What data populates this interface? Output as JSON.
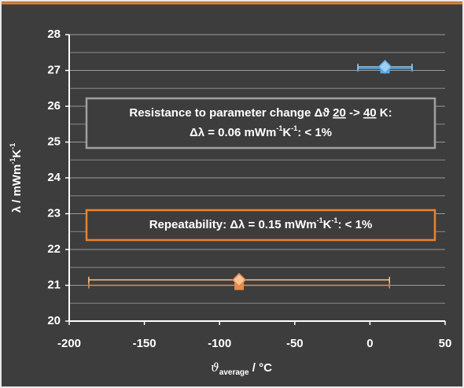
{
  "chart_data": {
    "type": "scatter",
    "x_label": [
      {
        "text": "ϑ",
        "style": "italic"
      },
      {
        "text": "average",
        "style": "sub"
      },
      {
        "text": " / °C"
      }
    ],
    "y_label": [
      {
        "text": "λ / mWm"
      },
      {
        "text": "-1",
        "style": "sup"
      },
      {
        "text": "K"
      },
      {
        "text": "-1",
        "style": "sup"
      }
    ],
    "xlim": [
      -200,
      50
    ],
    "xticks": [
      -200,
      -150,
      -100,
      -50,
      0,
      50
    ],
    "ylim": [
      20,
      28
    ],
    "yticks": [
      20,
      21,
      22,
      23,
      24,
      25,
      26,
      27,
      28
    ],
    "y_minor_ticks": [
      20.5,
      21.5,
      22.5,
      23.5,
      24.5,
      25.5,
      26.5,
      27.5
    ],
    "grid": true,
    "series": [
      {
        "color": "#5aaae6",
        "marker": "square",
        "x": [
          10
        ],
        "values": [
          27.05
        ],
        "xerr": [
          18
        ]
      },
      {
        "color": "#9fd0f2",
        "marker": "diamond",
        "x": [
          10
        ],
        "values": [
          27.1
        ],
        "xerr": [
          18
        ]
      },
      {
        "color": "#e88a4c",
        "marker": "square",
        "x": [
          -87
        ],
        "values": [
          21.0
        ],
        "xerr": [
          100
        ]
      },
      {
        "color": "#f5c49a",
        "marker": "diamond",
        "x": [
          -87
        ],
        "values": [
          21.15
        ],
        "xerr": [
          100
        ]
      }
    ],
    "annotations": [
      {
        "color": "#a0a0a0",
        "lines": [
          [
            {
              "text": "Resistance to parameter change Δϑ "
            },
            {
              "text": "20",
              "style": "underline"
            },
            {
              "text": " -> "
            },
            {
              "text": "40",
              "style": "underline"
            },
            {
              "text": " K:"
            }
          ],
          [
            {
              "text": "Δλ = 0.06 mWm"
            },
            {
              "text": "-1",
              "style": "sup"
            },
            {
              "text": "K"
            },
            {
              "text": "-1",
              "style": "sup"
            },
            {
              "text": ": < 1%"
            }
          ]
        ]
      },
      {
        "color": "#e8832e",
        "lines": [
          [
            {
              "text": "Repeatability: Δλ = 0.15 mWm"
            },
            {
              "text": "-1",
              "style": "sup"
            },
            {
              "text": "K"
            },
            {
              "text": "-1",
              "style": "sup"
            },
            {
              "text": ": < 1%"
            }
          ]
        ]
      }
    ]
  }
}
